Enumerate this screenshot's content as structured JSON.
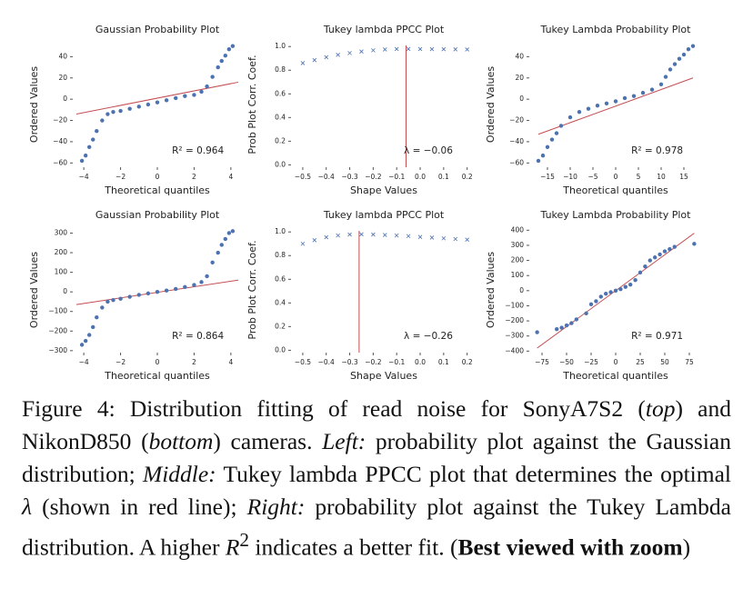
{
  "chart_data": [
    {
      "type": "scatter",
      "title": "Gaussian Probability Plot",
      "xlabel": "Theoretical quantiles",
      "ylabel": "Ordered Values",
      "annotation": "R² = 0.964",
      "marker": "o",
      "color": "#4c72b0",
      "fit_color": "#c44e52",
      "x": [
        -4.1,
        -3.9,
        -3.7,
        -3.5,
        -3.3,
        -3.0,
        -2.7,
        -2.4,
        -2.0,
        -1.5,
        -1.0,
        -0.5,
        0,
        0.5,
        1.0,
        1.5,
        2.0,
        2.4,
        2.7,
        3.0,
        3.3,
        3.5,
        3.7,
        3.9,
        4.1
      ],
      "values": [
        -58,
        -53,
        -45,
        -38,
        -30,
        -20,
        -14,
        -12,
        -11,
        -9,
        -7,
        -5,
        -3,
        -1,
        1,
        3,
        4,
        7,
        12,
        21,
        30,
        36,
        41,
        47,
        50
      ],
      "fit": {
        "x": [
          -4.4,
          4.4
        ],
        "y": [
          -14,
          16
        ]
      },
      "xlim": [
        -4.6,
        4.6
      ],
      "ylim": [
        -64,
        54
      ],
      "xticks": [
        {
          "value": -4,
          "label": "−4"
        },
        {
          "value": -2,
          "label": "−2"
        },
        0,
        2,
        4
      ],
      "yticks": [
        {
          "value": -60,
          "label": "−60"
        },
        {
          "value": -40,
          "label": "−40"
        },
        {
          "value": -20,
          "label": "−20"
        },
        0,
        20,
        40
      ]
    },
    {
      "type": "scatter",
      "title": "Tukey lambda PPCC Plot",
      "xlabel": "Shape Values",
      "ylabel": "Prob Plot Corr. Coef.",
      "annotation": "λ = −0.06",
      "marker": "x",
      "color": "#4c72b0",
      "fit_color": "#c44e52",
      "x": [
        -0.5,
        -0.45,
        -0.4,
        -0.35,
        -0.3,
        -0.25,
        -0.2,
        -0.15,
        -0.1,
        -0.05,
        0,
        0.05,
        0.1,
        0.15,
        0.2
      ],
      "values": [
        0.86,
        0.885,
        0.91,
        0.93,
        0.945,
        0.958,
        0.968,
        0.975,
        0.979,
        0.98,
        0.979,
        0.978,
        0.977,
        0.976,
        0.975
      ],
      "vline": -0.06,
      "xlim": [
        -0.55,
        0.24
      ],
      "ylim": [
        -0.02,
        1.04
      ],
      "xticks": [
        {
          "value": -0.5,
          "label": "−0.5"
        },
        {
          "value": -0.4,
          "label": "−0.4"
        },
        {
          "value": -0.3,
          "label": "−0.3"
        },
        {
          "value": -0.2,
          "label": "−0.2"
        },
        {
          "value": -0.1,
          "label": "−0.1"
        },
        {
          "value": 0,
          "label": "0.0"
        },
        0.1,
        0.2
      ],
      "yticks": [
        {
          "value": 0,
          "label": "0.0"
        },
        0.2,
        0.4,
        0.6,
        0.8,
        {
          "value": 1,
          "label": "1.0"
        }
      ]
    },
    {
      "type": "scatter",
      "title": "Tukey Lambda Probability Plot",
      "xlabel": "Theoretical quantiles",
      "ylabel": "Ordered Values",
      "annotation": "R² = 0.978",
      "marker": "o",
      "color": "#4c72b0",
      "fit_color": "#c44e52",
      "x": [
        -17,
        -16,
        -15,
        -14,
        -13,
        -12,
        -10,
        -8,
        -6,
        -4,
        -2,
        0,
        2,
        4,
        6,
        8,
        10,
        11,
        12,
        13,
        14,
        15,
        16,
        17
      ],
      "values": [
        -58,
        -53,
        -45,
        -38,
        -32,
        -25,
        -17,
        -12,
        -9,
        -6,
        -4,
        -2,
        1,
        3,
        6,
        9,
        14,
        21,
        28,
        33,
        38,
        42,
        47,
        50
      ],
      "fit": {
        "x": [
          -17,
          17
        ],
        "y": [
          -33,
          20
        ]
      },
      "xlim": [
        -19,
        19
      ],
      "ylim": [
        -64,
        54
      ],
      "xticks": [
        {
          "value": -15,
          "label": "−15"
        },
        {
          "value": -10,
          "label": "−10"
        },
        {
          "value": -5,
          "label": "−5"
        },
        0,
        5,
        10,
        15
      ],
      "yticks": [
        {
          "value": -60,
          "label": "−60"
        },
        {
          "value": -40,
          "label": "−40"
        },
        {
          "value": -20,
          "label": "−20"
        },
        0,
        20,
        40
      ]
    },
    {
      "type": "scatter",
      "title": "Gaussian Probability Plot",
      "xlabel": "Theoretical quantiles",
      "ylabel": "Ordered Values",
      "annotation": "R² = 0.864",
      "marker": "o",
      "color": "#4c72b0",
      "fit_color": "#c44e52",
      "x": [
        -4.1,
        -3.9,
        -3.7,
        -3.5,
        -3.3,
        -3.0,
        -2.7,
        -2.4,
        -2.0,
        -1.5,
        -1.0,
        -0.5,
        0,
        0.5,
        1.0,
        1.5,
        2.0,
        2.4,
        2.7,
        3.0,
        3.3,
        3.5,
        3.7,
        3.9,
        4.1
      ],
      "values": [
        -270,
        -250,
        -220,
        -180,
        -130,
        -80,
        -50,
        -42,
        -35,
        -25,
        -15,
        -8,
        0,
        7,
        15,
        25,
        35,
        50,
        80,
        150,
        200,
        240,
        270,
        300,
        310
      ],
      "fit": {
        "x": [
          -4.4,
          4.4
        ],
        "y": [
          -65,
          60
        ]
      },
      "xlim": [
        -4.6,
        4.6
      ],
      "ylim": [
        -310,
        330
      ],
      "xticks": [
        {
          "value": -4,
          "label": "−4"
        },
        {
          "value": -2,
          "label": "−2"
        },
        0,
        2,
        4
      ],
      "yticks": [
        {
          "value": -300,
          "label": "−300"
        },
        {
          "value": -200,
          "label": "−200"
        },
        {
          "value": -100,
          "label": "−100"
        },
        0,
        100,
        200,
        300
      ]
    },
    {
      "type": "scatter",
      "title": "Tukey lambda PPCC Plot",
      "xlabel": "Shape Values",
      "ylabel": "Prob Plot Corr. Coef.",
      "annotation": "λ = −0.26",
      "marker": "x",
      "color": "#4c72b0",
      "fit_color": "#c44e52",
      "x": [
        -0.5,
        -0.45,
        -0.4,
        -0.35,
        -0.3,
        -0.25,
        -0.2,
        -0.15,
        -0.1,
        -0.05,
        0,
        0.05,
        0.1,
        0.15,
        0.2
      ],
      "values": [
        0.9,
        0.93,
        0.955,
        0.97,
        0.978,
        0.98,
        0.978,
        0.974,
        0.97,
        0.965,
        0.958,
        0.952,
        0.946,
        0.94,
        0.935
      ],
      "vline": -0.26,
      "xlim": [
        -0.55,
        0.24
      ],
      "ylim": [
        -0.02,
        1.04
      ],
      "xticks": [
        {
          "value": -0.5,
          "label": "−0.5"
        },
        {
          "value": -0.4,
          "label": "−0.4"
        },
        {
          "value": -0.3,
          "label": "−0.3"
        },
        {
          "value": -0.2,
          "label": "−0.2"
        },
        {
          "value": -0.1,
          "label": "−0.1"
        },
        {
          "value": 0,
          "label": "0.0"
        },
        0.1,
        0.2
      ],
      "yticks": [
        {
          "value": 0,
          "label": "0.0"
        },
        0.2,
        0.4,
        0.6,
        0.8,
        {
          "value": 1,
          "label": "1.0"
        }
      ]
    },
    {
      "type": "scatter",
      "title": "Tukey Lambda Probability Plot",
      "xlabel": "Theoretical quantiles",
      "ylabel": "Ordered Values",
      "annotation": "R² = 0.971",
      "marker": "o",
      "color": "#4c72b0",
      "fit_color": "#c44e52",
      "x": [
        -80,
        -60,
        -55,
        -50,
        -45,
        -40,
        -30,
        -25,
        -20,
        -15,
        -10,
        -5,
        0,
        5,
        10,
        15,
        20,
        25,
        30,
        35,
        40,
        45,
        50,
        55,
        60,
        80
      ],
      "values": [
        -275,
        -255,
        -245,
        -230,
        -215,
        -190,
        -150,
        -90,
        -70,
        -40,
        -20,
        -10,
        0,
        10,
        25,
        40,
        70,
        120,
        160,
        200,
        220,
        240,
        260,
        275,
        290,
        310
      ],
      "fit": {
        "x": [
          -80,
          80
        ],
        "y": [
          -380,
          380
        ]
      },
      "xlim": [
        -88,
        88
      ],
      "ylim": [
        -410,
        420
      ],
      "xticks": [
        {
          "value": -75,
          "label": "−75"
        },
        {
          "value": -50,
          "label": "−50"
        },
        {
          "value": -25,
          "label": "−25"
        },
        0,
        25,
        50,
        75
      ],
      "yticks": [
        {
          "value": -400,
          "label": "−400"
        },
        {
          "value": -300,
          "label": "−300"
        },
        {
          "value": -200,
          "label": "−200"
        },
        {
          "value": -100,
          "label": "−100"
        },
        0,
        100,
        200,
        300,
        400
      ]
    }
  ],
  "caption": [
    "Figure 4: Distribution fitting of read noise for SonyA7S2 (",
    "top",
    ") and NikonD850 (",
    "bottom",
    ") cameras. ",
    "Left:",
    " probability plot against the Gaussian distribution; ",
    "Middle:",
    " Tukey lambda PPCC plot that determines the optimal ",
    "λ",
    " (shown in red line); ",
    "Right:",
    " probability plot against the Tukey Lambda distribution. A higher ",
    "R",
    "2",
    " indicates a better fit. (",
    "Best viewed with zoom",
    ")"
  ]
}
